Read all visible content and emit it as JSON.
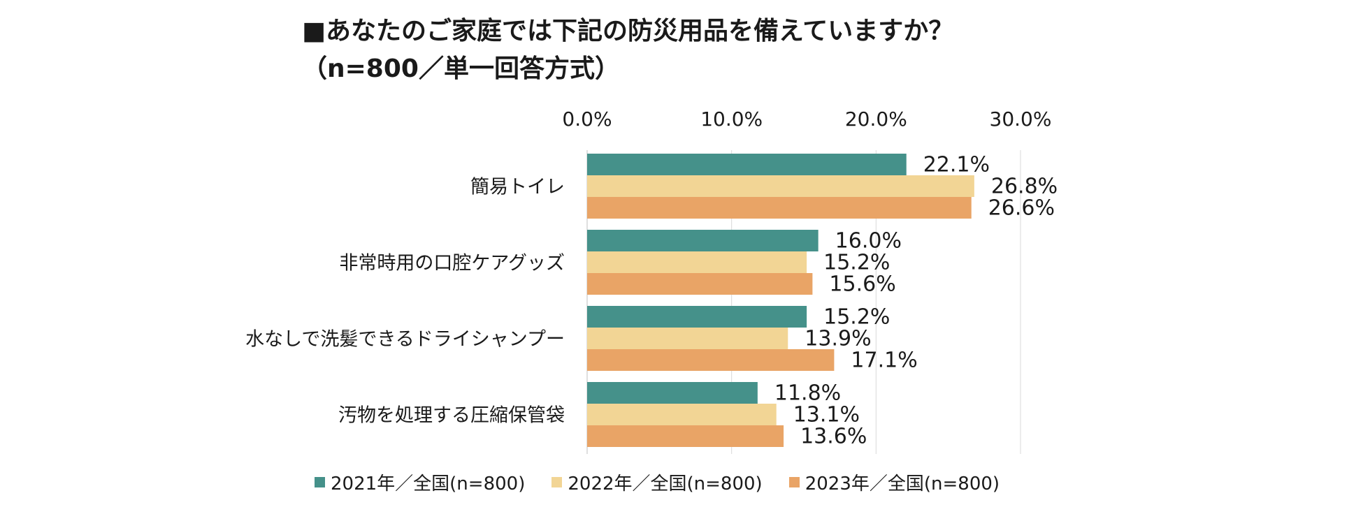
{
  "title": {
    "line1": "■あなたのご家庭では下記の防災用品を備えていますか？",
    "line2": "（n=800／単一回答方式）"
  },
  "colors": {
    "s2021": "#45918a",
    "s2022": "#f2d595",
    "s2023": "#e9a466",
    "grid": "#d9d9d9"
  },
  "chart_data": {
    "type": "bar",
    "orientation": "horizontal",
    "title": "あなたのご家庭では下記の防災用品を備えていますか？（n=800／単一回答方式）",
    "categories": [
      "簡易トイレ",
      "非常時用の口腔ケアグッズ",
      "水なしで洗髪できるドライシャンプー",
      "汚物を処理する圧縮保管袋"
    ],
    "series": [
      {
        "name": "2021年／全国(n=800)",
        "values": [
          22.1,
          16.0,
          15.2,
          11.8
        ],
        "labels": [
          "22.1%",
          "16.0%",
          "15.2%",
          "11.8%"
        ]
      },
      {
        "name": "2022年／全国(n=800)",
        "values": [
          26.8,
          15.2,
          13.9,
          13.1
        ],
        "labels": [
          "26.8%",
          "15.2%",
          "13.9%",
          "13.1%"
        ]
      },
      {
        "name": "2023年／全国(n=800)",
        "values": [
          26.6,
          15.6,
          17.1,
          13.6
        ],
        "labels": [
          "26.6%",
          "15.6%",
          "17.1%",
          "13.6%"
        ]
      }
    ],
    "xticks": [
      "0.0%",
      "10.0%",
      "20.0%",
      "30.0%"
    ],
    "xtick_values": [
      0,
      10,
      20,
      30
    ],
    "xlim": [
      0,
      30
    ],
    "xaxis_position": "top",
    "grid": true,
    "legend_position": "bottom"
  }
}
